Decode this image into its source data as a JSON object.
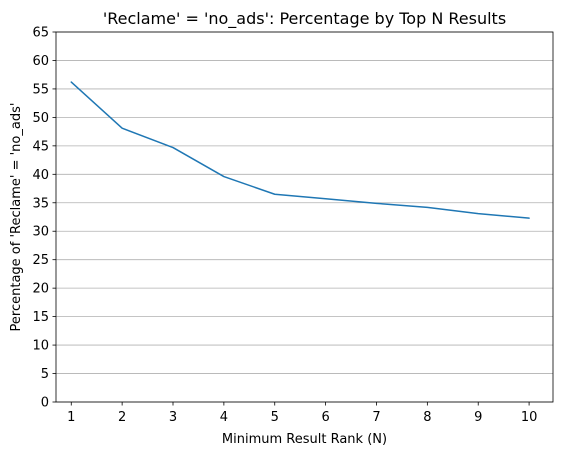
{
  "chart_data": {
    "type": "line",
    "title": "'Reclame' = 'no_ads': Percentage by Top N Results",
    "xlabel": "Minimum Result Rank (N)",
    "ylabel": "Percentage of 'Reclame' = 'no_ads'",
    "x": [
      1,
      2,
      3,
      4,
      5,
      6,
      7,
      8,
      9,
      10
    ],
    "series": [
      {
        "values": [
          56.2,
          48.1,
          44.7,
          39.6,
          36.5,
          35.7,
          34.9,
          34.2,
          33.1,
          32.3
        ]
      }
    ],
    "xticks": [
      1,
      2,
      3,
      4,
      5,
      6,
      7,
      8,
      9,
      10
    ],
    "yticks": [
      0,
      5,
      10,
      15,
      20,
      25,
      30,
      35,
      40,
      45,
      50,
      55,
      60,
      65
    ],
    "xlim": [
      0.7,
      10.47
    ],
    "ylim": [
      0,
      65
    ],
    "grid": "horizontal",
    "colors": {
      "line": "#1f77b4",
      "grid": "#b0b0b0",
      "axis": "#000000"
    }
  }
}
